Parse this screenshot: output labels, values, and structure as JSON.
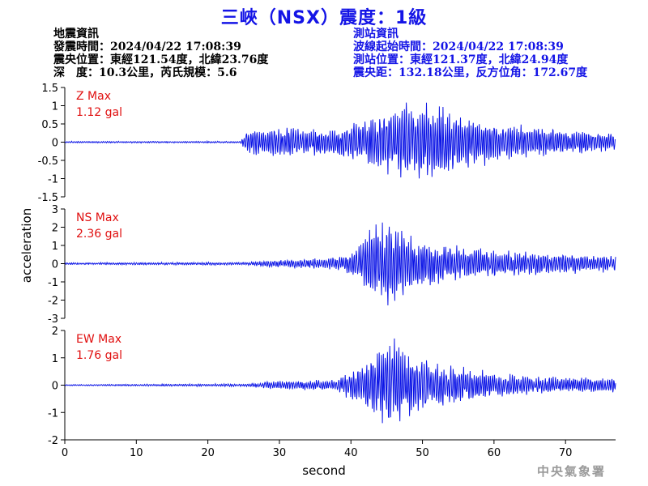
{
  "title": "三峽（NSX）震度：1級",
  "quake_info": {
    "heading": "地震資訊",
    "origin_time": "發震時間：2024/04/22 17:08:39",
    "epicenter": "震央位置：東經121.54度，北緯23.76度",
    "depth_magnitude": "深　度：10.3公里，芮氏規模：5.6"
  },
  "station_info": {
    "heading": "測站資訊",
    "wave_start": "波線起始時間：2024/04/22 17:08:39",
    "station_position": "測站位置：東經121.37度，北緯24.94度",
    "distance_azimuth": "震央距：132.18公里，反方位角：172.67度"
  },
  "agency": "中央氣象署",
  "chart_data": {
    "type": "line",
    "xlabel": "second",
    "ylabel": "acceleration",
    "xlim": [
      0,
      77
    ],
    "xticks": [
      0,
      10,
      20,
      30,
      40,
      50,
      60,
      70
    ],
    "trace_color": "#0b14e6",
    "label_color": "#e01010",
    "panels": [
      {
        "component": "Z",
        "label": "Z Max",
        "max_label": "1.12 gal",
        "max": 1.12,
        "ylim": [
          -1.5,
          1.5
        ],
        "yticks": [
          -1.5,
          -1,
          -0.5,
          0,
          0.5,
          1,
          1.5
        ],
        "ytick_labels": [
          "-1.5",
          "-1",
          "-0.5",
          "0",
          "0.5",
          "1",
          "1.5"
        ],
        "envelope": [
          [
            0,
            0.02
          ],
          [
            24.5,
            0.02
          ],
          [
            25.5,
            0.3
          ],
          [
            30,
            0.35
          ],
          [
            38,
            0.3
          ],
          [
            42,
            0.6
          ],
          [
            46,
            0.8
          ],
          [
            49,
            1.05
          ],
          [
            53,
            0.9
          ],
          [
            57,
            0.55
          ],
          [
            63,
            0.4
          ],
          [
            70,
            0.3
          ],
          [
            77,
            0.2
          ]
        ]
      },
      {
        "component": "NS",
        "label": "NS Max",
        "max_label": "2.36 gal",
        "max": 2.36,
        "ylim": [
          -3,
          3
        ],
        "yticks": [
          -3,
          -2,
          -1,
          0,
          1,
          2,
          3
        ],
        "ytick_labels": [
          "-3",
          "-2",
          "-1",
          "0",
          "1",
          "2",
          "3"
        ],
        "envelope": [
          [
            0,
            0.04
          ],
          [
            25,
            0.06
          ],
          [
            30,
            0.15
          ],
          [
            38,
            0.25
          ],
          [
            41,
            0.6
          ],
          [
            43,
            1.6
          ],
          [
            45,
            1.9
          ],
          [
            47,
            1.3
          ],
          [
            52,
            0.8
          ],
          [
            58,
            0.6
          ],
          [
            65,
            0.45
          ],
          [
            77,
            0.35
          ]
        ]
      },
      {
        "component": "EW",
        "label": "EW Max",
        "max_label": "1.76 gal",
        "max": 1.76,
        "ylim": [
          -2,
          2
        ],
        "yticks": [
          -2,
          -1,
          0,
          1,
          2
        ],
        "ytick_labels": [
          "-2",
          "-1",
          "0",
          "1",
          "2"
        ],
        "envelope": [
          [
            0,
            0.02
          ],
          [
            25,
            0.05
          ],
          [
            30,
            0.15
          ],
          [
            38,
            0.2
          ],
          [
            41,
            0.6
          ],
          [
            43,
            1.1
          ],
          [
            46,
            1.6
          ],
          [
            48,
            1.1
          ],
          [
            52,
            0.8
          ],
          [
            58,
            0.5
          ],
          [
            65,
            0.3
          ],
          [
            77,
            0.25
          ]
        ]
      }
    ]
  }
}
